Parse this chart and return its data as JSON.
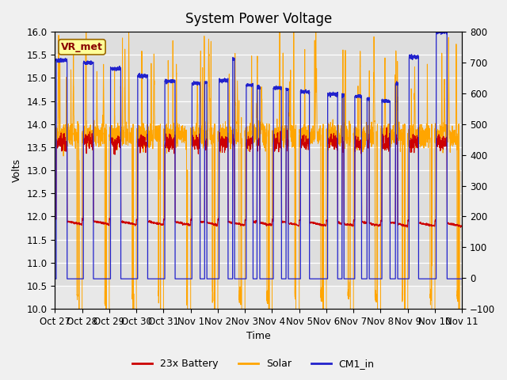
{
  "title": "System Power Voltage",
  "xlabel": "Time",
  "ylabel_left": "Volts",
  "ylim_left": [
    10.0,
    16.0
  ],
  "ylim_right": [
    -100,
    800
  ],
  "yticks_left": [
    10.0,
    10.5,
    11.0,
    11.5,
    12.0,
    12.5,
    13.0,
    13.5,
    14.0,
    14.5,
    15.0,
    15.5,
    16.0
  ],
  "yticks_right": [
    -100,
    0,
    100,
    200,
    300,
    400,
    500,
    600,
    700,
    800
  ],
  "xtick_labels": [
    "Oct 27",
    "Oct 28",
    "Oct 29",
    "Oct 30",
    "Oct 31",
    "Nov 1",
    "Nov 2",
    "Nov 3",
    "Nov 4",
    "Nov 5",
    "Nov 6",
    "Nov 7",
    "Nov 8",
    "Nov 9",
    "Nov 10",
    "Nov 11"
  ],
  "n_days": 15,
  "colors": {
    "battery": "#cc0000",
    "solar": "#ffa500",
    "cm1": "#2222cc"
  },
  "legend_entries": [
    "23x Battery",
    "Solar",
    "CM1_in"
  ],
  "annotation_text": "VR_met",
  "annotation_color": "#880000",
  "annotation_bg": "#ffff99",
  "title_fontsize": 12,
  "label_fontsize": 9,
  "tick_fontsize": 8.5,
  "bg_outer": "#f0f0f0",
  "bg_inner": "#e8e8e8",
  "band_color": "#d8d8d8"
}
